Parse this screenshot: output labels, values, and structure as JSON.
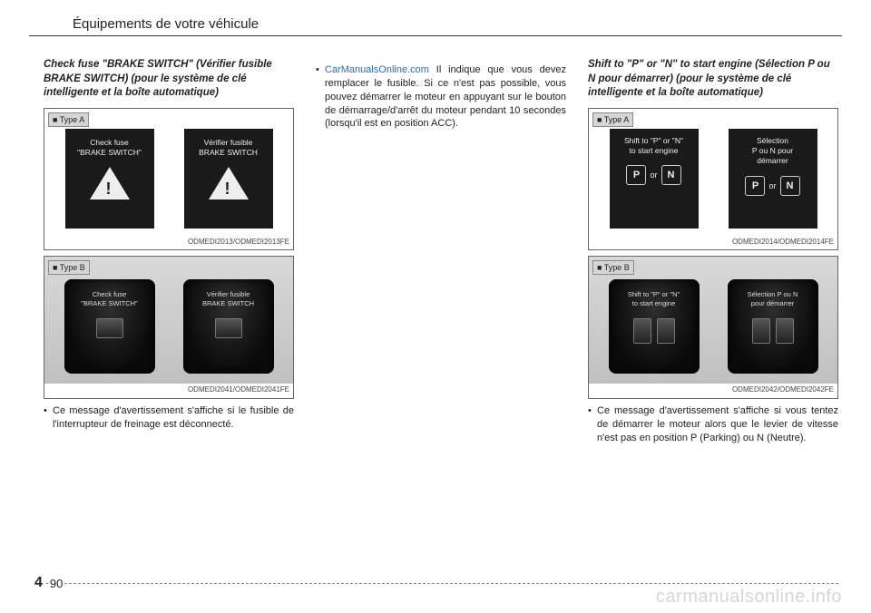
{
  "header": "Équipements de votre véhicule",
  "col1": {
    "subtitle": "Check fuse \"BRAKE SWITCH\" (Vérifier fusible BRAKE SWITCH) (pour le système de clé intelligente et la boîte automatique)",
    "typeA": "■ Type A",
    "typeB": "■ Type B",
    "panelA_left_l1": "Check fuse",
    "panelA_left_l2": "\"BRAKE SWITCH\"",
    "panelA_right_l1": "Vérifier fusible",
    "panelA_right_l2": "BRAKE SWITCH",
    "refA": "ODMEDI2013/ODMEDI2013FE",
    "clusterB_left_l1": "Check fuse",
    "clusterB_left_l2": "\"BRAKE SWITCH\"",
    "clusterB_right_l1": "Vérifier fusible",
    "clusterB_right_l2": "BRAKE SWITCH",
    "refB": "ODMEDI2041/ODMEDI2041FE",
    "bullet": "Ce message d'avertissement s'affiche si le fusible de l'interrupteur de freinage est déconnecté."
  },
  "col2": {
    "link_prefix": "• ",
    "link": "CarManualsOnline.com",
    "link_rest_inline": "Il indique que vous devez remplacer le fusible. Si ce n'est pas possible, vous pouvez démarrer le moteur en appuyant sur le bouton de démarrage/d'arrêt du moteur pendant 10 secondes (lorsqu'il est en position ACC)."
  },
  "col3": {
    "subtitle": "Shift to \"P\" or \"N\" to start engine (Sélection P ou N pour démarrer) (pour le système de clé intelligente et la boîte automatique)",
    "typeA": "■ Type A",
    "typeB": "■ Type B",
    "panelA_left_l1": "Shift to \"P\" or \"N\"",
    "panelA_left_l2": "to start engine",
    "panelA_right_l1": "Sélection",
    "panelA_right_l2": "P ou N pour",
    "panelA_right_l3": "démarrer",
    "or": "or",
    "P": "P",
    "N": "N",
    "refA": "ODMEDI2014/ODMEDI2014FE",
    "clusterB_left_l1": "Shift to \"P\" or \"N\"",
    "clusterB_left_l2": "to start engine",
    "clusterB_right_l1": "Sélection P ou N",
    "clusterB_right_l2": "pour démarrer",
    "refB": "ODMEDI2042/ODMEDI2042FE",
    "bullet": "Ce message d'avertissement s'affiche si vous tentez de démarrer le moteur alors que le levier de vitesse n'est pas en position P (Parking) ou N (Neutre)."
  },
  "footer": {
    "section": "4",
    "page": "90"
  },
  "watermark": "carmanualsonline.info"
}
